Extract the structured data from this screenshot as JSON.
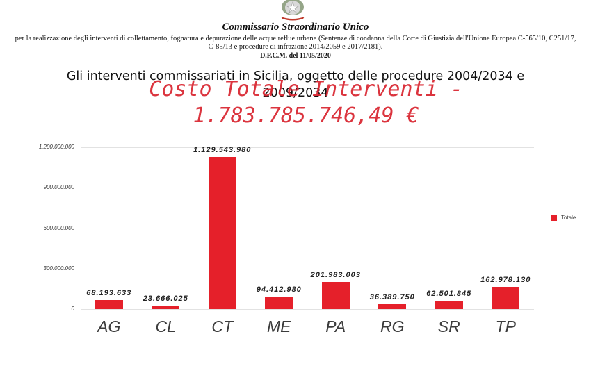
{
  "header": {
    "emblem": "italian-republic-emblem",
    "org_title": "Commissario Straordinario Unico",
    "org_description_line1": "per la realizzazione degli interventi di collettamento, fognatura e depurazione delle acque reflue urbane (Sentenze di condanna della Corte di Giustizia dell'Unione Europea C-565/10, C251/17,",
    "org_description_line2": "C-85/13 e procedure di infrazione 2014/2059 e 2017/2181).",
    "decree": "D.P.C.M. del 11/05/2020"
  },
  "titles": {
    "main_line1": "Gli interventi commissariati in Sicilia, oggetto delle procedure 2004/2034 e",
    "main_line2": "2009/2034",
    "cost_line1": "Costo Totale Interventi  -",
    "cost_line2": "1.783.785.746,49 €"
  },
  "colors": {
    "bar": "#e5202a",
    "cost_title": "#d9232e"
  },
  "chart_data": {
    "type": "bar",
    "title": "Costo Totale Interventi - 1.783.785.746,49 €",
    "categories": [
      "AG",
      "CL",
      "CT",
      "ME",
      "PA",
      "RG",
      "SR",
      "TP"
    ],
    "series": [
      {
        "name": "Totale",
        "values": [
          68193633,
          23666025,
          1129543980,
          94412980,
          201983003,
          36389750,
          62501845,
          162978130
        ],
        "labels": [
          "68.193.633",
          "23.666.025",
          "1.129.543.980",
          "94.412.980",
          "201.983.003",
          "36.389.750",
          "62.501.845",
          "162.978.130"
        ]
      }
    ],
    "xlabel": "",
    "ylabel": "",
    "ylim": [
      0,
      1200000000
    ],
    "yticks": [
      0,
      300000000,
      600000000,
      900000000,
      1200000000
    ],
    "ytick_labels": [
      "0",
      "300.000.000",
      "600.000.000",
      "900.000.000",
      "1.200.000.000"
    ],
    "grid": true,
    "legend": {
      "position": "right",
      "entries": [
        "Totale"
      ]
    }
  }
}
